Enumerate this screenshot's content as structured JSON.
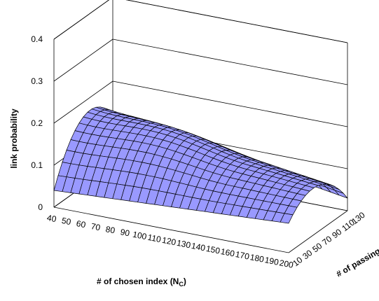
{
  "chart_data": {
    "type": "surface3d",
    "ylabel": "link probability",
    "xlabel": "# of chosen index (N",
    "xlabel_sub": "C",
    "zlabel": "# of passing vehicles (N",
    "zlabel_sub": "V",
    "y_ticks": [
      "0",
      "0.1",
      "0.2",
      "0.3",
      "0.4"
    ],
    "x_ticks": [
      "40",
      "50",
      "60",
      "70",
      "80",
      "90",
      "100",
      "110",
      "120",
      "130",
      "140",
      "150",
      "160",
      "170",
      "180",
      "190",
      "200"
    ],
    "z_ticks": [
      "10",
      "30",
      "50",
      "70",
      "90",
      "110",
      "130"
    ],
    "ylim": [
      0,
      0.4
    ],
    "xlim": [
      40,
      200
    ],
    "zlim": [
      10,
      130
    ],
    "surface_color": "#9999FF",
    "grid_color": "#000000",
    "surface_samples": [
      {
        "n_c": 40,
        "n_v": 10,
        "p": 0.04
      },
      {
        "n_c": 40,
        "n_v": 70,
        "p": 0.3
      },
      {
        "n_c": 40,
        "n_v": 130,
        "p": 0.36
      },
      {
        "n_c": 90,
        "n_v": 130,
        "p": 0.4
      },
      {
        "n_c": 200,
        "n_v": 10,
        "p": 0.07
      },
      {
        "n_c": 200,
        "n_v": 70,
        "p": 0.26
      },
      {
        "n_c": 200,
        "n_v": 130,
        "p": 0.3
      }
    ]
  }
}
